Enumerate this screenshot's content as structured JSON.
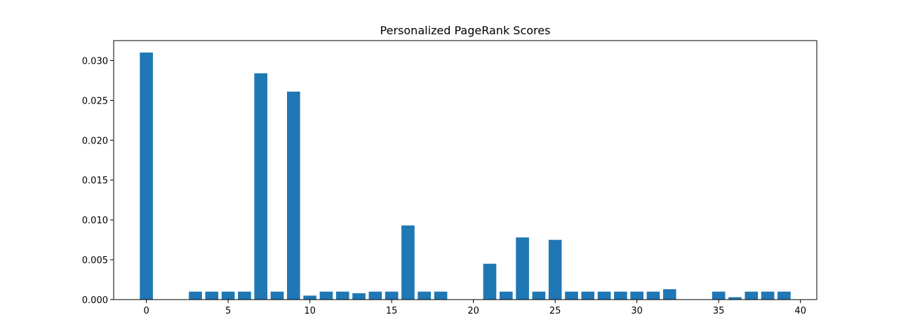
{
  "chart_data": {
    "type": "bar",
    "title": "Personalized PageRank Scores",
    "xlabel": "",
    "ylabel": "",
    "x": [
      0,
      1,
      2,
      3,
      4,
      5,
      6,
      7,
      8,
      9,
      10,
      11,
      12,
      13,
      14,
      15,
      16,
      17,
      18,
      19,
      20,
      21,
      22,
      23,
      24,
      25,
      26,
      27,
      28,
      29,
      30,
      31,
      32,
      33,
      34,
      35,
      36,
      37,
      38,
      39
    ],
    "values": [
      0.031,
      0,
      0,
      0.001,
      0.001,
      0.001,
      0.001,
      0.0284,
      0.001,
      0.0261,
      0.0005,
      0.001,
      0.001,
      0.0008,
      0.001,
      0.001,
      0.0093,
      0.001,
      0.001,
      0,
      0,
      0.0045,
      0.001,
      0.0078,
      0.001,
      0.0075,
      0.001,
      0.001,
      0.001,
      0.001,
      0.001,
      0.001,
      0.0013,
      0,
      0,
      0.001,
      0.0003,
      0.001,
      0.001,
      0.001
    ],
    "xlim": [
      -2,
      41
    ],
    "ylim": [
      0,
      0.0325
    ],
    "xticks": [
      0,
      5,
      10,
      15,
      20,
      25,
      30,
      35,
      40
    ],
    "xtick_labels": [
      "0",
      "5",
      "10",
      "15",
      "20",
      "25",
      "30",
      "35",
      "40"
    ],
    "yticks": [
      0,
      0.005,
      0.01,
      0.015,
      0.02,
      0.025,
      0.03
    ],
    "ytick_labels": [
      "0.000",
      "0.005",
      "0.010",
      "0.015",
      "0.020",
      "0.025",
      "0.030"
    ],
    "grid": false,
    "bar_color": "#1f77b4"
  }
}
